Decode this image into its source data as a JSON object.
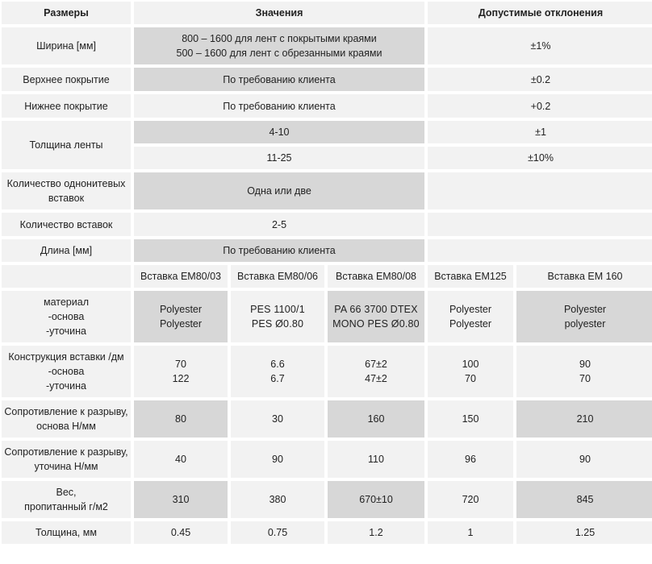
{
  "header": {
    "col1": "Размеры",
    "col2": "Значения",
    "col3": "Допустимые отклонения"
  },
  "rows": {
    "width": {
      "label": "Ширина [мм]",
      "value_line1": "800 – 1600 для лент с покрытыми краями",
      "value_line2": "500 – 1600 для лент с обрезанными краями",
      "tolerance": "±1%"
    },
    "top_cover": {
      "label": "Верхнее покрытие",
      "value": "По требованию клиента",
      "tolerance": "±0.2"
    },
    "bottom_cover": {
      "label": "Нижнее покрытие",
      "value": "По требованию клиента",
      "tolerance": "+0.2"
    },
    "thickness": {
      "label": "Толщина ленты",
      "value1": "4-10",
      "tolerance1": "±1",
      "value2": "11-25",
      "tolerance2": "±10%"
    },
    "single_inserts": {
      "label_line1": "Количество однонитевых",
      "label_line2": "вставок",
      "value": "Одна или две",
      "tolerance": ""
    },
    "insert_count": {
      "label": "Количество вставок",
      "value": "2-5",
      "tolerance": ""
    },
    "length": {
      "label": "Длина [мм]",
      "value": "По требованию клиента"
    }
  },
  "inserts": {
    "headers": [
      "Вставка EM80/03",
      "Вставка EM80/06",
      "Вставка EM80/08",
      "Вставка EM125",
      "Вставка EM 160"
    ],
    "material": {
      "label_line1": "материал",
      "label_line2": "-основа",
      "label_line3": "-уточина",
      "values": [
        [
          "Polyester",
          "Polyester"
        ],
        [
          "PES 1100/1",
          "PES Ø0.80"
        ],
        [
          "PA 66 3700 DTEX",
          "MONO PES Ø0.80"
        ],
        [
          "Polyester",
          "Polyester"
        ],
        [
          "Polyester",
          "polyester"
        ]
      ]
    },
    "construction": {
      "label_line1": "Конструкция вставки /дм",
      "label_line2": "-основа",
      "label_line3": "-уточина",
      "values": [
        [
          "70",
          "122"
        ],
        [
          "6.6",
          "6.7"
        ],
        [
          "67±2",
          "47±2"
        ],
        [
          "100",
          "70"
        ],
        [
          "90",
          "70"
        ]
      ]
    },
    "tensile_warp": {
      "label_line1": "Сопротивление к разрыву,",
      "label_line2": "основа Н/мм",
      "values": [
        "80",
        "30",
        "160",
        "150",
        "210"
      ]
    },
    "tensile_weft": {
      "label_line1": "Сопротивление к разрыву,",
      "label_line2": "уточина Н/мм",
      "values": [
        "40",
        "90",
        "110",
        "96",
        "90"
      ]
    },
    "weight": {
      "label_line1": "Вес,",
      "label_line2": "пропитанный г/м2",
      "values": [
        "310",
        "380",
        "670±10",
        "720",
        "845"
      ]
    },
    "thickness": {
      "label": "Толщина, мм",
      "values": [
        "0.45",
        "0.75",
        "1.2",
        "1",
        "1.25"
      ]
    }
  }
}
